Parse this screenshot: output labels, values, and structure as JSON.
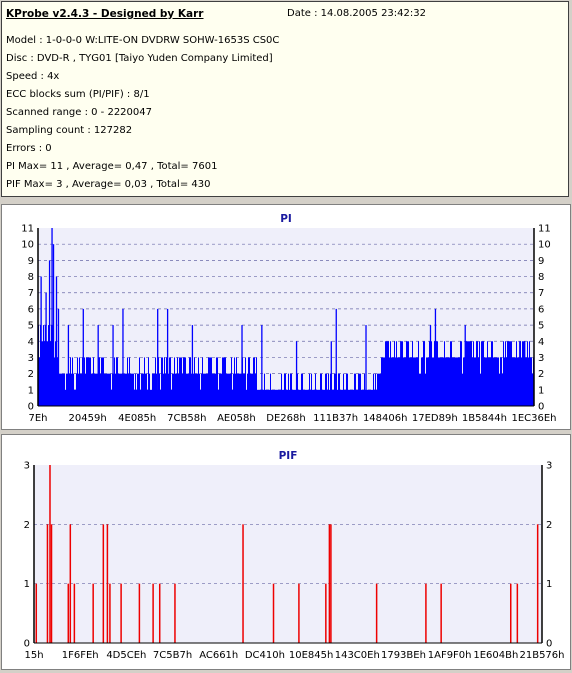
{
  "info": {
    "title": "KProbe v2.4.3 - Designed by Karr",
    "date": "Date : 14.08.2005 23:42:32",
    "lines": [
      "Model : 1-0-0-0 W:LITE-ON DVDRW SOHW-1653S CS0C",
      "Disc : DVD-R , TYG01 [Taiyo Yuden Company Limited]",
      "Speed : 4x",
      "ECC blocks sum (PI/PIF) : 8/1",
      "Scanned range : 0 - 2220047",
      "Sampling count : 127282",
      "Errors : 0",
      "PI Max= 11 , Average= 0,47 , Total= 7601",
      "PIF Max= 3 , Average= 0,03 , Total= 430"
    ]
  },
  "colors": {
    "pi": "#0000ff",
    "pif": "#ee0000",
    "plot_bg": "#efeffa",
    "grid": "#6a6aa8"
  },
  "chart_data": [
    {
      "type": "bar",
      "title": "PI",
      "ylim": [
        0,
        11
      ],
      "yticks": [
        "0",
        "1",
        "2",
        "3",
        "4",
        "5",
        "6",
        "7",
        "8",
        "9",
        "10",
        "11"
      ],
      "xtick_labels": [
        "7Eh",
        "20459h",
        "4E085h",
        "7CB58h",
        "AE058h",
        "DE268h",
        "111B37h",
        "148406h",
        "17ED89h",
        "1B5844h",
        "1EC36Eh"
      ],
      "grid": true,
      "baseline_profile": [
        {
          "x_frac_start": 0.0,
          "x_frac_end": 0.035,
          "value": 4
        },
        {
          "x_frac_start": 0.035,
          "x_frac_end": 0.44,
          "value": 2
        },
        {
          "x_frac_start": 0.44,
          "x_frac_end": 0.69,
          "value": 1
        },
        {
          "x_frac_start": 0.69,
          "x_frac_end": 1.0,
          "value": 3
        }
      ],
      "peaks": [
        {
          "x_frac": 0.005,
          "value": 8
        },
        {
          "x_frac": 0.01,
          "value": 5
        },
        {
          "x_frac": 0.015,
          "value": 7
        },
        {
          "x_frac": 0.022,
          "value": 9
        },
        {
          "x_frac": 0.027,
          "value": 11
        },
        {
          "x_frac": 0.03,
          "value": 10
        },
        {
          "x_frac": 0.036,
          "value": 8
        },
        {
          "x_frac": 0.04,
          "value": 6
        },
        {
          "x_frac": 0.06,
          "value": 5
        },
        {
          "x_frac": 0.09,
          "value": 6
        },
        {
          "x_frac": 0.12,
          "value": 5
        },
        {
          "x_frac": 0.15,
          "value": 5
        },
        {
          "x_frac": 0.17,
          "value": 6
        },
        {
          "x_frac": 0.24,
          "value": 6
        },
        {
          "x_frac": 0.26,
          "value": 6
        },
        {
          "x_frac": 0.31,
          "value": 5
        },
        {
          "x_frac": 0.41,
          "value": 5
        },
        {
          "x_frac": 0.45,
          "value": 5
        },
        {
          "x_frac": 0.52,
          "value": 4
        },
        {
          "x_frac": 0.59,
          "value": 4
        },
        {
          "x_frac": 0.6,
          "value": 6
        },
        {
          "x_frac": 0.66,
          "value": 5
        },
        {
          "x_frac": 0.73,
          "value": 4
        },
        {
          "x_frac": 0.79,
          "value": 5
        },
        {
          "x_frac": 0.8,
          "value": 6
        },
        {
          "x_frac": 0.86,
          "value": 5
        },
        {
          "x_frac": 0.97,
          "value": 4
        },
        {
          "x_frac": 0.98,
          "value": 4
        }
      ]
    },
    {
      "type": "bar",
      "title": "PIF",
      "ylim": [
        0,
        3
      ],
      "yticks": [
        "0",
        "1",
        "2",
        "3"
      ],
      "xtick_labels": [
        "15h",
        "1F6FEh",
        "4D5CEh",
        "7C5B7h",
        "AC661h",
        "DC410h",
        "10E845h",
        "143C0Eh",
        "1793BEh",
        "1AF9F0h",
        "1E604Bh",
        "21B576h"
      ],
      "grid": true,
      "bars": [
        {
          "x_frac": 0.003,
          "value": 1
        },
        {
          "x_frac": 0.025,
          "value": 2
        },
        {
          "x_frac": 0.03,
          "value": 3
        },
        {
          "x_frac": 0.033,
          "value": 2
        },
        {
          "x_frac": 0.066,
          "value": 1
        },
        {
          "x_frac": 0.07,
          "value": 2
        },
        {
          "x_frac": 0.078,
          "value": 1
        },
        {
          "x_frac": 0.115,
          "value": 1
        },
        {
          "x_frac": 0.135,
          "value": 2
        },
        {
          "x_frac": 0.143,
          "value": 2
        },
        {
          "x_frac": 0.148,
          "value": 1
        },
        {
          "x_frac": 0.17,
          "value": 1
        },
        {
          "x_frac": 0.206,
          "value": 1
        },
        {
          "x_frac": 0.233,
          "value": 1
        },
        {
          "x_frac": 0.246,
          "value": 1
        },
        {
          "x_frac": 0.276,
          "value": 1
        },
        {
          "x_frac": 0.41,
          "value": 2
        },
        {
          "x_frac": 0.47,
          "value": 1
        },
        {
          "x_frac": 0.52,
          "value": 1
        },
        {
          "x_frac": 0.573,
          "value": 1
        },
        {
          "x_frac": 0.58,
          "value": 2
        },
        {
          "x_frac": 0.583,
          "value": 2
        },
        {
          "x_frac": 0.673,
          "value": 1
        },
        {
          "x_frac": 0.77,
          "value": 1
        },
        {
          "x_frac": 0.8,
          "value": 1
        },
        {
          "x_frac": 0.937,
          "value": 1
        },
        {
          "x_frac": 0.95,
          "value": 1
        },
        {
          "x_frac": 0.99,
          "value": 2
        }
      ]
    }
  ]
}
